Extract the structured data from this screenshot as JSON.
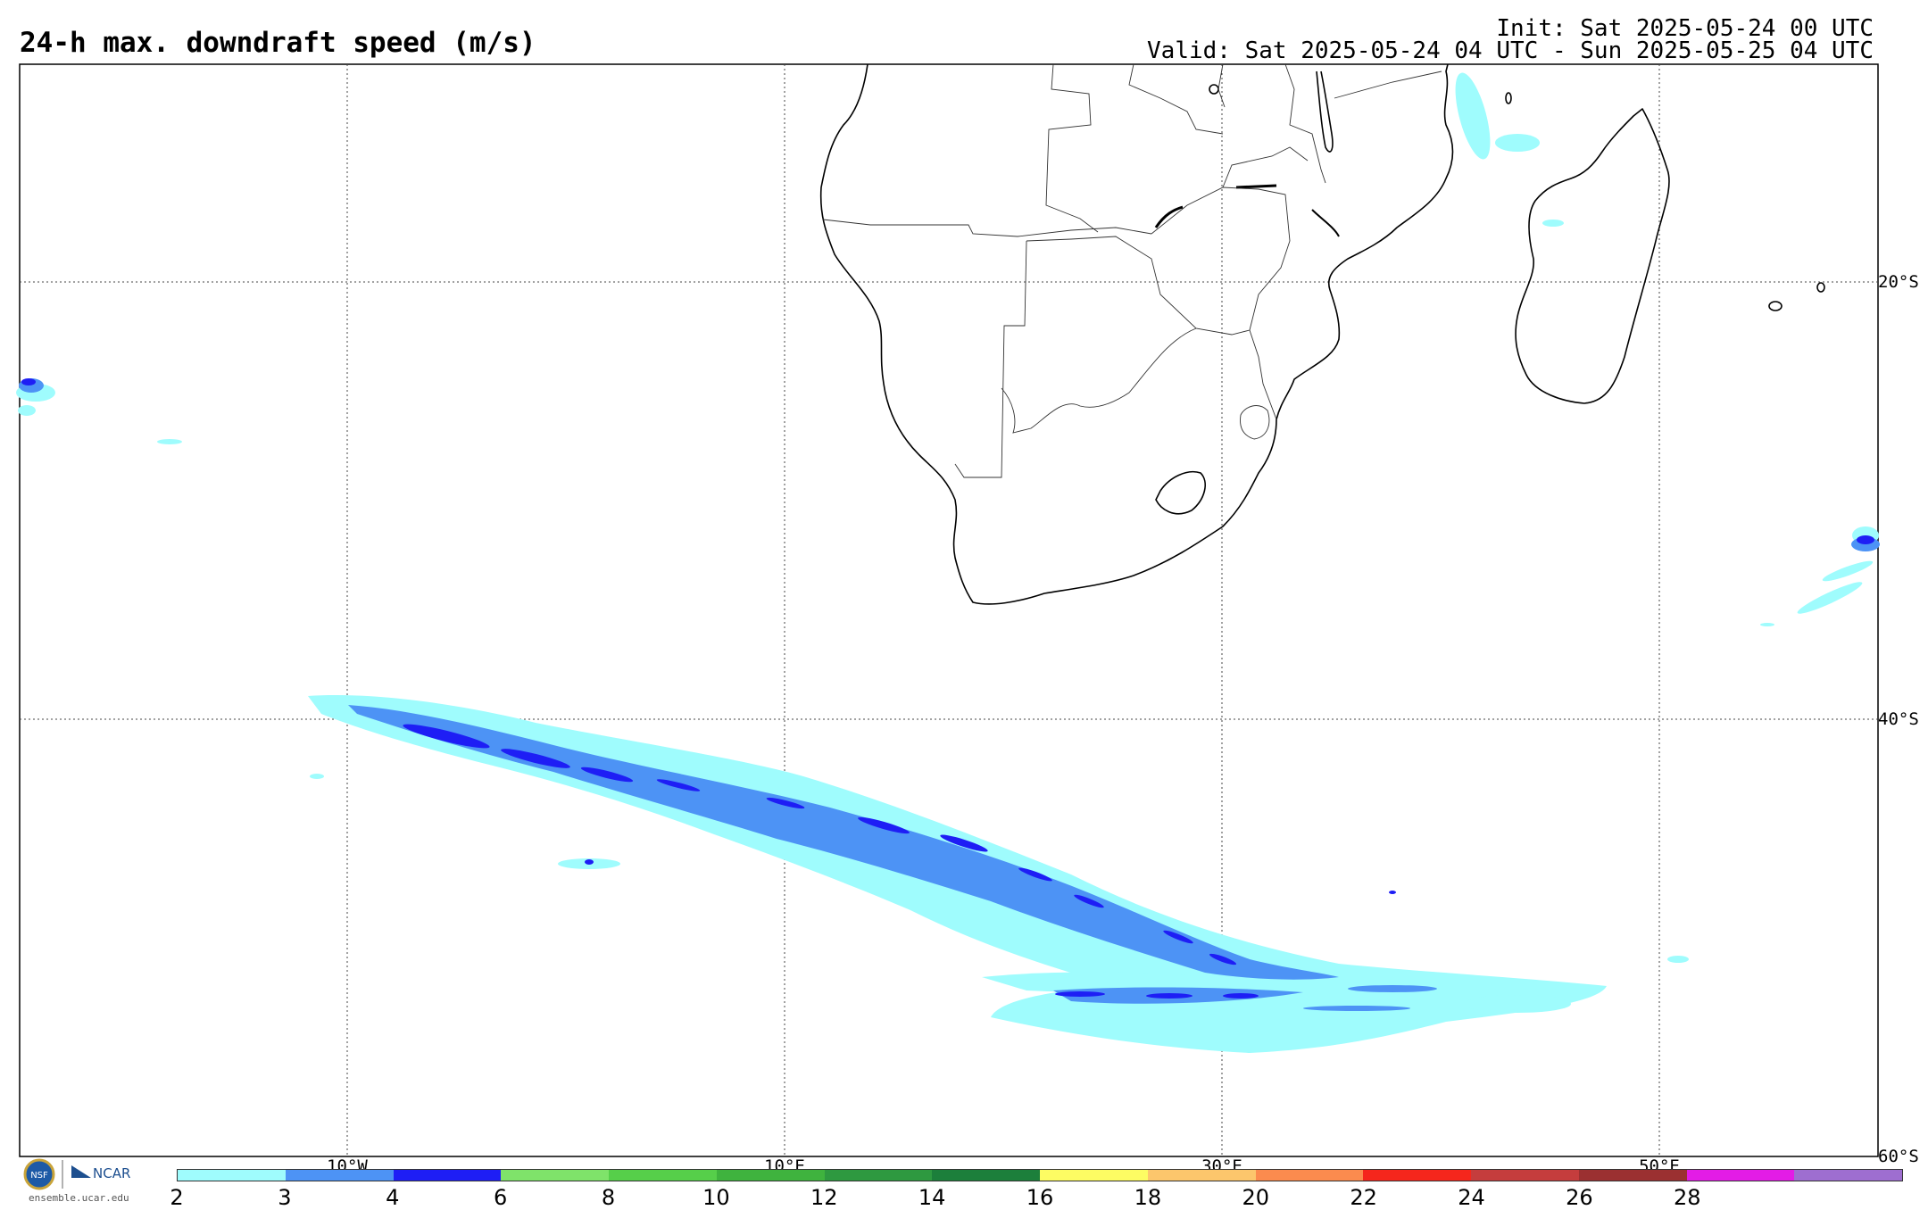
{
  "title": "24-h max. downdraft speed (m/s)",
  "init": "Init: Sat 2025-05-24 00 UTC",
  "valid": "Valid: Sat 2025-05-24 04 UTC - Sun 2025-05-25 04 UTC",
  "lat_labels": [
    "20°S",
    "40°S",
    "60°S"
  ],
  "lon_labels": [
    "10°W",
    "10°E",
    "30°E",
    "50°E"
  ],
  "colorbar": {
    "labels": [
      "2",
      "3",
      "4",
      "6",
      "8",
      "10",
      "12",
      "14",
      "16",
      "18",
      "20",
      "22",
      "24",
      "26",
      "28"
    ],
    "colors": [
      "#9ffcfd",
      "#4d93f5",
      "#1e1ef5",
      "#7fe36a",
      "#56cf4a",
      "#3fb33e",
      "#2e9940",
      "#1c7f3b",
      "#fdfc63",
      "#fcc66c",
      "#fb8b4e",
      "#f5261c",
      "#c53d3d",
      "#9b3031",
      "#e31ce6",
      "#9e6ed0"
    ]
  },
  "logos": {
    "nsf": "NSF",
    "ncar": "NCAR",
    "site": "ensemble.ucar.edu"
  }
}
